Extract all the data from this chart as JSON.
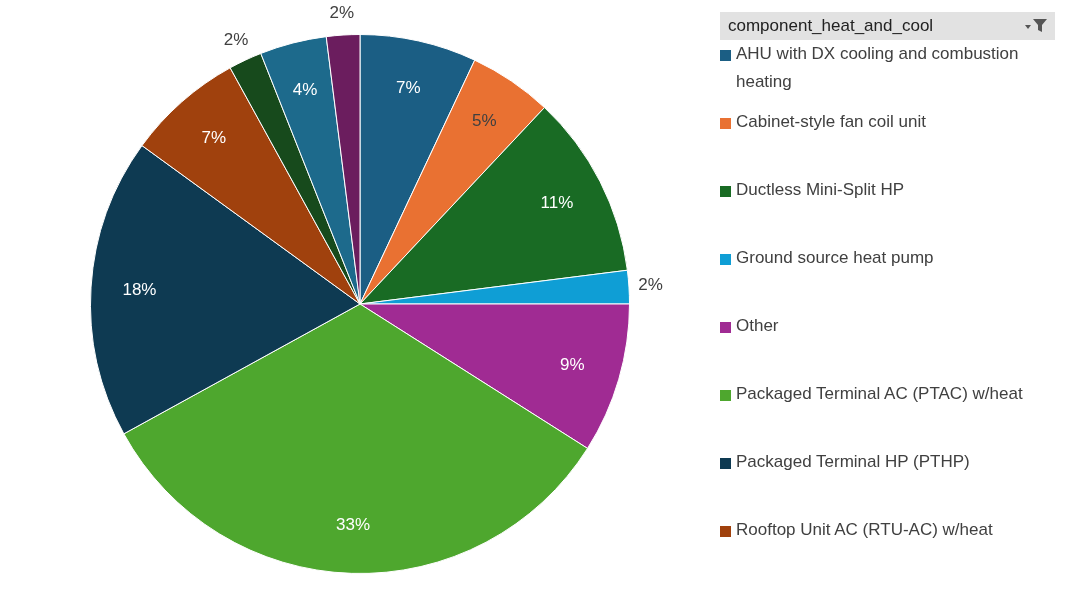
{
  "chart_data": {
    "type": "pie",
    "legend_title": "component_heat_and_cool",
    "legend": "right",
    "categories": [
      "AHU with DX cooling and combustion heating",
      "Cabinet-style fan coil unit",
      "Ductless Mini-Split HP",
      "Ground source heat pump",
      "Other",
      "Packaged Terminal AC (PTAC) w/heat",
      "Packaged Terminal HP (PTHP)",
      "Rooftop Unit AC (RTU-AC) w/heat",
      null,
      null,
      null
    ],
    "values": [
      7,
      5,
      11,
      2,
      9,
      33,
      18,
      7,
      2,
      4,
      2
    ],
    "value_labels": [
      "7%",
      "5%",
      "11%",
      "2%",
      "9%",
      "33%",
      "18%",
      "7%",
      "2%",
      "4%",
      "2%"
    ],
    "colors": [
      "#1b5e84",
      "#e97132",
      "#196b24",
      "#0f9ed5",
      "#a02b93",
      "#4ea72e",
      "#0e3a52",
      "#a0410d",
      "#174a1c",
      "#1d6a8c",
      "#6b1d5e"
    ]
  }
}
